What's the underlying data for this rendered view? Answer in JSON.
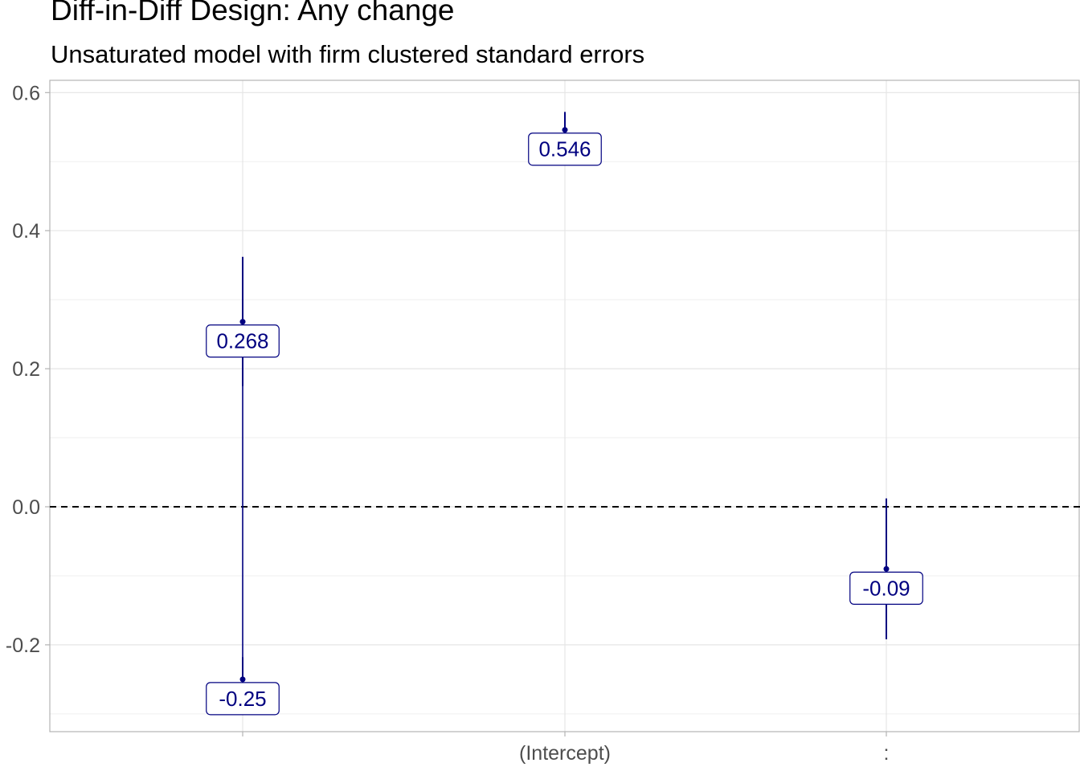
{
  "chart_data": {
    "type": "scatter",
    "title": "Diff-in-Diff Design: Any change",
    "subtitle": "Unsaturated model with firm clustered standard errors",
    "xlabel": "",
    "ylabel": "",
    "categories": [
      "",
      "(Intercept)",
      ":"
    ],
    "ylim": [
      -0.325,
      0.615
    ],
    "yticks": [
      -0.2,
      0.0,
      0.2,
      0.4,
      0.6
    ],
    "ytick_labels": [
      "-0.2",
      "0.0",
      "0.2",
      "0.4",
      "0.6"
    ],
    "grid": true,
    "reference_line": {
      "y": 0,
      "style": "dashed",
      "color": "#000000"
    },
    "colors": {
      "series": "#000080",
      "grid": "#e5e5e5",
      "axis": "#b3b3b3"
    },
    "points": [
      {
        "category_index": 0,
        "y": 0.268,
        "label": "0.268",
        "ci": [
          0.175,
          0.362
        ]
      },
      {
        "category_index": 0,
        "y": -0.25,
        "label": "-0.25",
        "ci": [
          -0.3,
          -0.218
        ]
      },
      {
        "category_index": 1,
        "y": 0.546,
        "label": "0.546",
        "ci": [
          0.53,
          0.572
        ]
      },
      {
        "category_index": 2,
        "y": -0.09,
        "label": "-0.09",
        "ci": [
          -0.192,
          0.012
        ]
      }
    ],
    "vertical_spans": [
      {
        "category_index": 0,
        "range": [
          -0.3,
          0.362
        ]
      }
    ]
  }
}
